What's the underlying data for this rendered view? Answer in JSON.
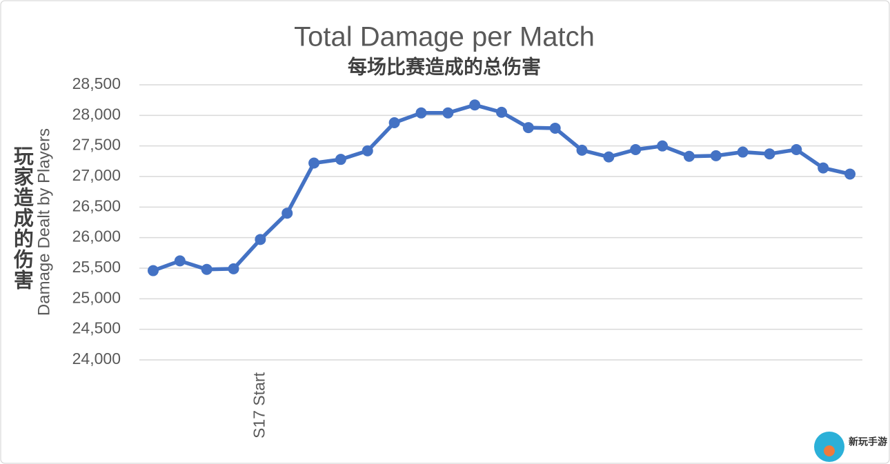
{
  "chart_data": {
    "type": "line",
    "title": "Total Damage per Match",
    "subtitle": "每场比赛造成的总伤害",
    "y_label": "Damage Dealt by Players",
    "y_label_cn": "玩家造成的伤害",
    "watermark": "新玩手游",
    "categories": [
      null,
      null,
      null,
      null,
      "S17 Start",
      null,
      null,
      null,
      null,
      null,
      null,
      null,
      null,
      null,
      null,
      null,
      null,
      null,
      null,
      null,
      null,
      null,
      null,
      null,
      null,
      null,
      null
    ],
    "values": [
      25460,
      25620,
      25480,
      25490,
      25970,
      26400,
      27220,
      27280,
      27420,
      27880,
      28040,
      28040,
      28170,
      28050,
      27800,
      27790,
      27430,
      27320,
      27440,
      27500,
      27330,
      27340,
      27400,
      27370,
      27440,
      27140,
      27040
    ],
    "color": "#4472c4",
    "ylim": [
      24000,
      28500
    ],
    "yticks": [
      {
        "value": 24000,
        "label": "24,000"
      },
      {
        "value": 24500,
        "label": "24,500"
      },
      {
        "value": 25000,
        "label": "25,000"
      },
      {
        "value": 25500,
        "label": "25,500"
      },
      {
        "value": 26000,
        "label": "26,000"
      },
      {
        "value": 26500,
        "label": "26,500"
      },
      {
        "value": 27000,
        "label": "27,000"
      },
      {
        "value": 27500,
        "label": "27,500"
      },
      {
        "value": 28000,
        "label": "28,000"
      },
      {
        "value": 28500,
        "label": "28,500"
      }
    ],
    "grid": true
  }
}
